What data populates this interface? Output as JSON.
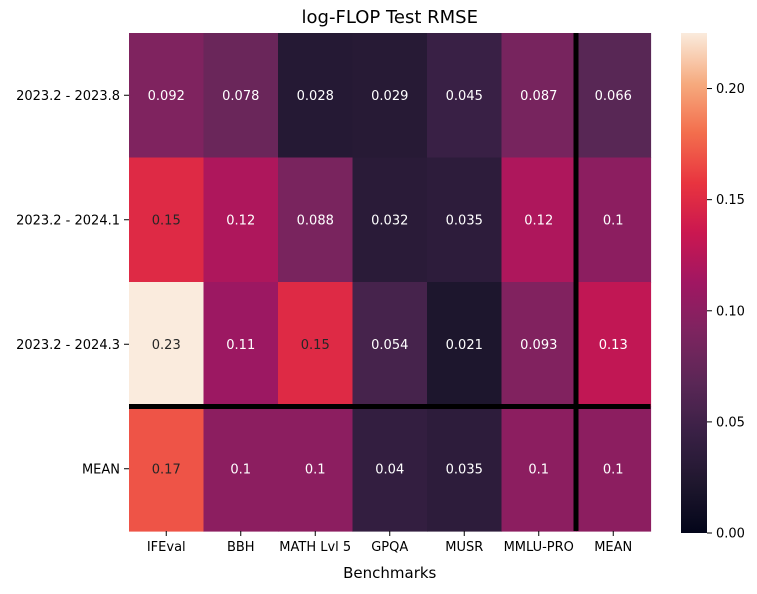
{
  "chart_data": {
    "type": "heatmap",
    "title": "log-FLOP Test RMSE",
    "xlabel": "Benchmarks",
    "ylabel": "",
    "columns": [
      "IFEval",
      "BBH",
      "MATH Lvl 5",
      "GPQA",
      "MUSR",
      "MMLU-PRO",
      "MEAN"
    ],
    "rows": [
      "2023.2 - 2023.8",
      "2023.2 - 2024.1",
      "2023.2 - 2024.3",
      "MEAN"
    ],
    "values": [
      [
        0.092,
        0.078,
        0.028,
        0.029,
        0.045,
        0.087,
        0.066
      ],
      [
        0.15,
        0.12,
        0.088,
        0.032,
        0.035,
        0.12,
        0.1
      ],
      [
        0.23,
        0.11,
        0.15,
        0.054,
        0.021,
        0.093,
        0.13
      ],
      [
        0.17,
        0.1,
        0.1,
        0.04,
        0.035,
        0.1,
        0.1
      ]
    ],
    "labels": [
      [
        "0.092",
        "0.078",
        "0.028",
        "0.029",
        "0.045",
        "0.087",
        "0.066"
      ],
      [
        "0.15",
        "0.12",
        "0.088",
        "0.032",
        "0.035",
        "0.12",
        "0.1"
      ],
      [
        "0.23",
        "0.11",
        "0.15",
        "0.054",
        "0.021",
        "0.093",
        "0.13"
      ],
      [
        "0.17",
        "0.1",
        "0.1",
        "0.04",
        "0.035",
        "0.1",
        "0.1"
      ]
    ],
    "colormap": "rocket",
    "vmin": 0,
    "vmax": 0.225,
    "colorbar_ticks": [
      0.0,
      0.05,
      0.1,
      0.15,
      0.2
    ],
    "colorbar_tick_labels": [
      "0.00",
      "0.05",
      "0.10",
      "0.15",
      "0.20"
    ]
  }
}
